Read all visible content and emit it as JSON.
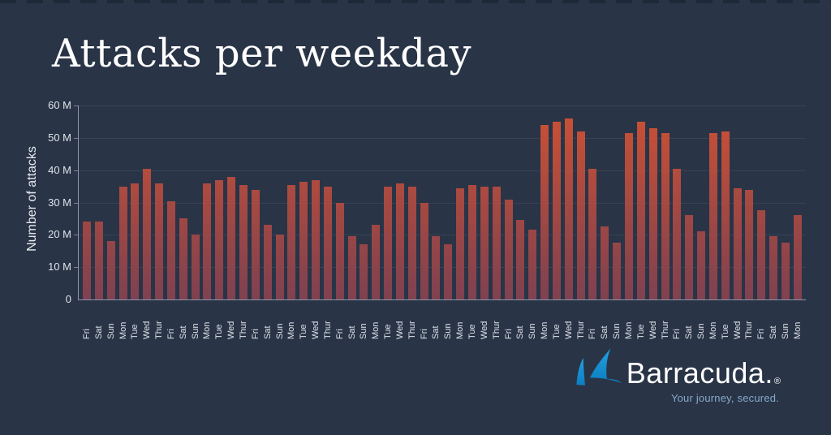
{
  "page": {
    "background": "#293447",
    "top_dash_color": "#1e2938"
  },
  "title": "Attacks per weekday",
  "chart_data": {
    "type": "bar",
    "title": "Attacks per weekday",
    "xlabel": "",
    "ylabel": "Number of attacks",
    "unit": "millions",
    "ylim": [
      0,
      60
    ],
    "grid": "horizontal",
    "legend": "none",
    "y_ticks": [
      "60 M",
      "50 M",
      "40 M",
      "30 M",
      "20 M",
      "10 M",
      "0"
    ],
    "y_tick_values": [
      60,
      50,
      40,
      30,
      20,
      10,
      0
    ],
    "categories": [
      "Fri",
      "Sat",
      "Sun",
      "Mon",
      "Tue",
      "Wed",
      "Thur",
      "Fri",
      "Sat",
      "Sun",
      "Mon",
      "Tue",
      "Wed",
      "Thur",
      "Fri",
      "Sat",
      "Sun",
      "Mon",
      "Tue",
      "Wed",
      "Thur",
      "Fri",
      "Sat",
      "Sun",
      "Mon",
      "Tue",
      "Wed",
      "Thur",
      "Fri",
      "Sat",
      "Sun",
      "Mon",
      "Tue",
      "Wed",
      "Thur",
      "Fri",
      "Sat",
      "Sun",
      "Mon",
      "Tue",
      "Wed",
      "Thur",
      "Fri",
      "Sat",
      "Sun",
      "Mon",
      "Tue",
      "Wed",
      "Thur",
      "Fri",
      "Sat",
      "Sun",
      "Mon",
      "Tue",
      "Wed",
      "Thur",
      "Fri",
      "Sat",
      "Sun",
      "Mon"
    ],
    "values": [
      24,
      24,
      18,
      35,
      36,
      40.5,
      36,
      30.5,
      25,
      20,
      36,
      37,
      38,
      35.5,
      34,
      23,
      20,
      35.5,
      36.5,
      37,
      35,
      30,
      19.5,
      17,
      23,
      35,
      36,
      35,
      30,
      19.5,
      17,
      34.5,
      35.5,
      35,
      35,
      31,
      24.5,
      21.5,
      54,
      55,
      56,
      52,
      40.5,
      22.5,
      17.5,
      51.5,
      55,
      53,
      51.5,
      40.5,
      26,
      21,
      51.5,
      52,
      34.5,
      34,
      27.5,
      19.5,
      17.5,
      26
    ],
    "bar_color_top": "#cd5133",
    "bar_color_bottom": "#7f4150"
  },
  "logo": {
    "brand": "Barracuda.",
    "registered": "®",
    "tagline": "Your journey, secured.",
    "fin_color_top": "#22a1e0",
    "fin_color_bottom": "#0d7ec0",
    "tagline_color": "#86a9c9"
  }
}
